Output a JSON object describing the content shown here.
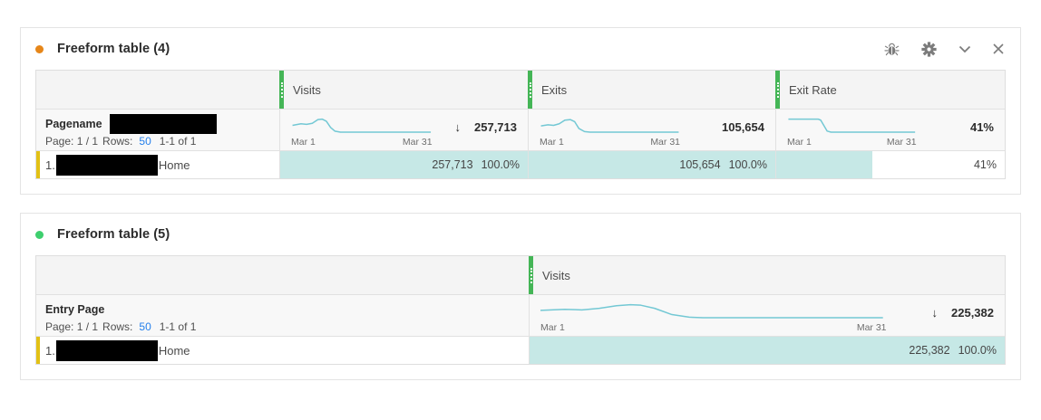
{
  "colors": {
    "teal_cell_fill": "#c6e8e6",
    "sparkline_blue": "#73c8d4",
    "drag_handle_green": "#44b556",
    "row_marker_yellow": "#e2c115",
    "panel1_dot_orange": "#e68619",
    "panel2_dot_green": "#3ecf6e",
    "rows_link_blue": "#2680eb"
  },
  "panels": [
    {
      "title": "Freeform table (4)",
      "toolbar_icons": [
        "debug-icon",
        "gear-icon",
        "chevron-down-icon",
        "close-icon"
      ],
      "dimension": {
        "name": "Pagename",
        "pagination": {
          "page": "Page: 1 / 1",
          "rows_label": "Rows:",
          "rows_value": "50",
          "range": "1-1 of 1"
        }
      },
      "columns": [
        {
          "label": "Visits",
          "summary": {
            "start": "Mar 1",
            "end": "Mar 31",
            "sort_arrow": "↓",
            "value": "257,713",
            "spark_points": [
              [
                1,
                20
              ],
              [
                7,
                17
              ],
              [
                11,
                18
              ],
              [
                15,
                16
              ],
              [
                19,
                9
              ],
              [
                22,
                8
              ],
              [
                25,
                12
              ],
              [
                28,
                24
              ],
              [
                31,
                31
              ],
              [
                35,
                33
              ],
              [
                99,
                33
              ]
            ]
          }
        },
        {
          "label": "Exits",
          "summary": {
            "start": "Mar 1",
            "end": "Mar 31",
            "value": "105,654",
            "spark_points": [
              [
                1,
                21
              ],
              [
                6,
                19
              ],
              [
                10,
                20
              ],
              [
                14,
                17
              ],
              [
                18,
                10
              ],
              [
                22,
                9
              ],
              [
                25,
                13
              ],
              [
                28,
                26
              ],
              [
                32,
                32
              ],
              [
                36,
                33
              ],
              [
                99,
                33
              ]
            ]
          }
        },
        {
          "label": "Exit Rate",
          "summary": {
            "start": "Mar 1",
            "end": "Mar 31",
            "value": "41%",
            "spark_points": [
              [
                1,
                8
              ],
              [
                24,
                8
              ],
              [
                26,
                10
              ],
              [
                31,
                31
              ],
              [
                34,
                33
              ],
              [
                99,
                33
              ]
            ]
          }
        }
      ],
      "rows": [
        {
          "rank": "1.",
          "label": "Home",
          "redacted": true,
          "cells": [
            {
              "value": "257,713",
              "pct": "100.0%",
              "fill_pct": 100
            },
            {
              "value": "105,654",
              "pct": "100.0%",
              "fill_pct": 100
            },
            {
              "value": "41%",
              "pct": "",
              "fill_pct": 42
            }
          ]
        }
      ]
    },
    {
      "title": "Freeform table (5)",
      "toolbar_icons": [],
      "dimension": {
        "name": "Entry Page",
        "pagination": {
          "page": "Page: 1 / 1",
          "rows_label": "Rows:",
          "rows_value": "50",
          "range": "1-1 of 1"
        }
      },
      "columns": [
        {
          "label": "Visits",
          "summary": {
            "start": "Mar 1",
            "end": "Mar 31",
            "sort_arrow": "↓",
            "value": "225,382",
            "spark_points": [
              [
                0,
                19
              ],
              [
                7,
                17
              ],
              [
                12,
                18
              ],
              [
                17,
                15
              ],
              [
                22,
                10
              ],
              [
                26,
                8
              ],
              [
                29,
                9
              ],
              [
                33,
                15
              ],
              [
                38,
                27
              ],
              [
                43,
                32
              ],
              [
                47,
                33
              ],
              [
                99,
                33
              ]
            ]
          }
        }
      ],
      "rows": [
        {
          "rank": "1.",
          "label": "Home",
          "redacted": true,
          "cells": [
            {
              "value": "225,382",
              "pct": "100.0%",
              "fill_pct": 100
            }
          ]
        }
      ]
    }
  ]
}
